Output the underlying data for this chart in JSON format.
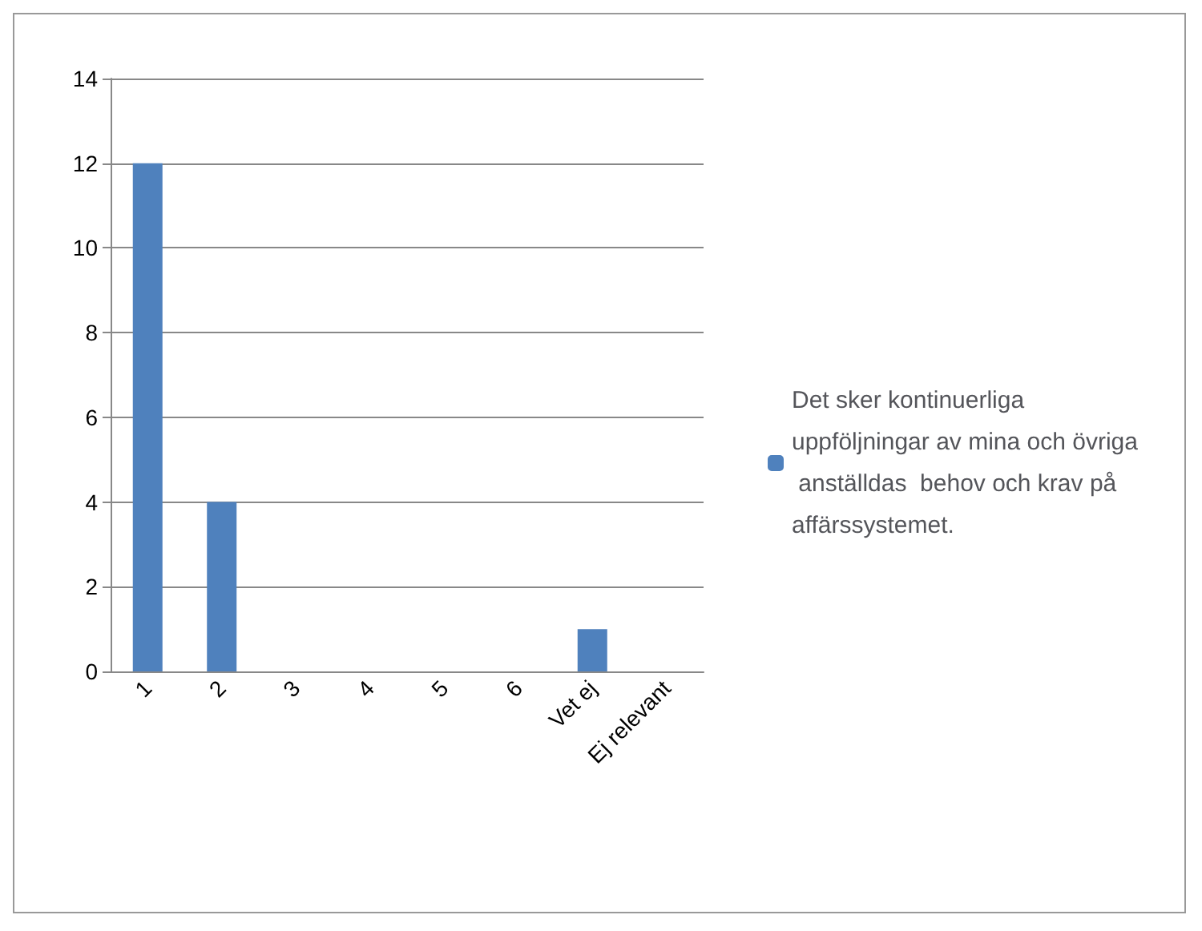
{
  "chart_data": {
    "type": "bar",
    "categories": [
      "1",
      "2",
      "3",
      "4",
      "5",
      "6",
      "Vet ej",
      "Ej relevant"
    ],
    "series": [
      {
        "name": "Det sker kontinuerliga uppföljningar av mina och övriga anställdas  behov och krav på affärssystemet.",
        "color": "#4f81bd",
        "values": [
          12,
          4,
          0,
          0,
          0,
          0,
          1,
          0
        ]
      }
    ],
    "ylim": [
      0,
      14
    ],
    "yticks": [
      0,
      2,
      4,
      6,
      8,
      10,
      12,
      14
    ],
    "grid": "y",
    "legend": "right"
  }
}
